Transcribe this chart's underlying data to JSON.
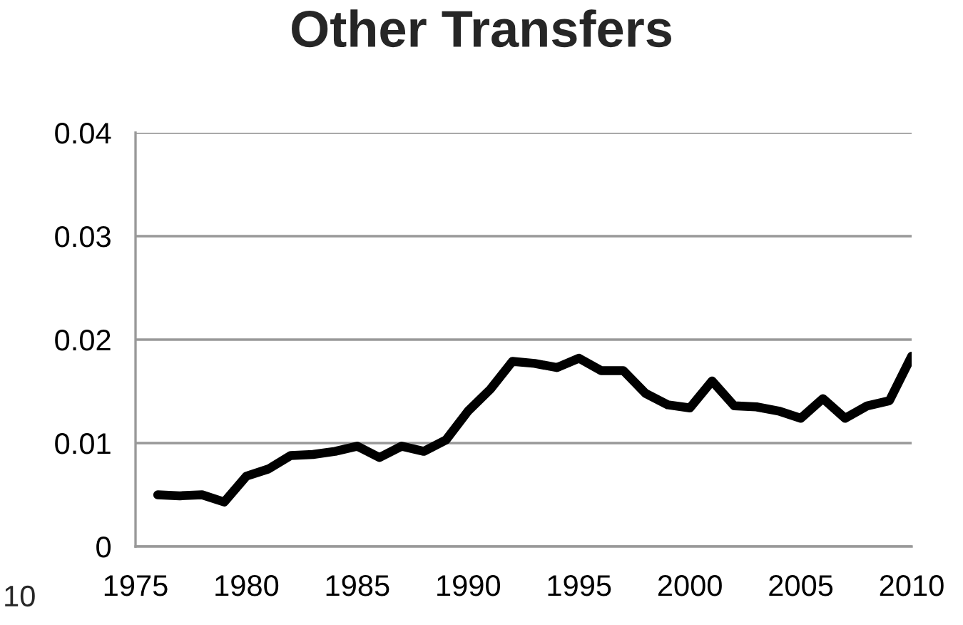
{
  "chart_data": {
    "type": "line",
    "title": "Other Transfers",
    "x": [
      1976,
      1977,
      1978,
      1979,
      1980,
      1981,
      1982,
      1983,
      1984,
      1985,
      1986,
      1987,
      1988,
      1989,
      1990,
      1991,
      1992,
      1993,
      1994,
      1995,
      1996,
      1997,
      1998,
      1999,
      2000,
      2001,
      2002,
      2003,
      2004,
      2005,
      2006,
      2007,
      2008,
      2009,
      2010
    ],
    "series": [
      {
        "color": "#000000",
        "values": [
          0.005,
          0.0049,
          0.005,
          0.0043,
          0.0068,
          0.0075,
          0.0088,
          0.0089,
          0.0092,
          0.0097,
          0.0086,
          0.0097,
          0.0092,
          0.0103,
          0.0131,
          0.0152,
          0.0179,
          0.0177,
          0.0173,
          0.0182,
          0.017,
          0.017,
          0.0148,
          0.0137,
          0.0134,
          0.016,
          0.0136,
          0.0135,
          0.0131,
          0.0124,
          0.0143,
          0.0124,
          0.0136,
          0.0141,
          0.0184
        ]
      }
    ],
    "xlim": [
      1975,
      2010
    ],
    "xticks": [
      1975,
      1980,
      1985,
      1990,
      1995,
      2000,
      2005,
      2010
    ],
    "ylim": [
      0,
      0.04
    ],
    "yticks": [
      {
        "value": 0,
        "label": "0"
      },
      0.01,
      0.02,
      0.03,
      0.04
    ],
    "grid": "y",
    "legend": false,
    "marker": "none",
    "line_style": "solid",
    "annotations": [
      "10"
    ]
  }
}
